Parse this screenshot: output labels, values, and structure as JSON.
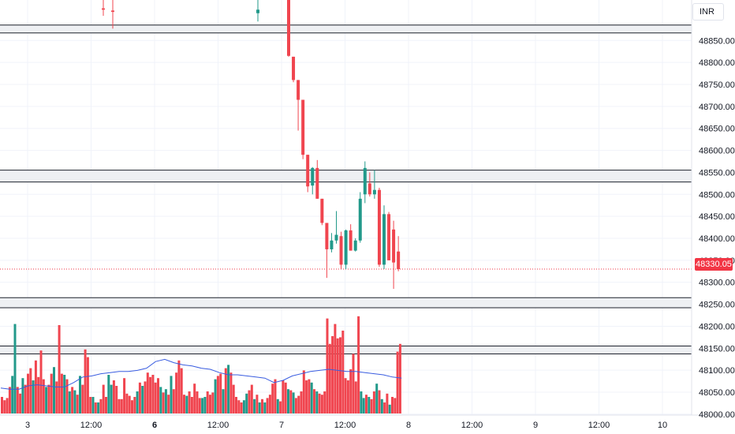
{
  "currency": "INR",
  "last_price_label": "48330.05",
  "colors": {
    "up": "#22998a",
    "down": "#f0454f",
    "ma": "#3a5de0",
    "zone_fill": "#eef0f3",
    "zone_border": "#1e222d",
    "grid": "#f0f3fa",
    "price_line": "#f23645"
  },
  "chart_data": {
    "type": "candlestick",
    "price_axis_ticks": [
      "48850.00",
      "48800.00",
      "48750.00",
      "48700.00",
      "48650.00",
      "48600.00",
      "48550.00",
      "48500.00",
      "48450.00",
      "48400.00",
      "48350.00",
      "48300.00",
      "48250.00",
      "48200.00",
      "48150.00",
      "48100.00",
      "48050.00",
      "48000.00"
    ],
    "time_axis_ticks": [
      {
        "label": "3",
        "bold": false
      },
      {
        "label": "12:00",
        "bold": false
      },
      {
        "label": "6",
        "bold": true
      },
      {
        "label": "12:00",
        "bold": false
      },
      {
        "label": "7",
        "bold": false
      },
      {
        "label": "12:00",
        "bold": false
      },
      {
        "label": "8",
        "bold": false
      },
      {
        "label": "12:00",
        "bold": false
      },
      {
        "label": "9",
        "bold": false
      },
      {
        "label": "12:00",
        "bold": false
      },
      {
        "label": "10",
        "bold": false
      }
    ],
    "ylim": [
      47998,
      48942
    ],
    "last_price": 48330.05,
    "horizontal_zones": [
      [
        48867,
        48885
      ],
      [
        48528,
        48555
      ],
      [
        48242,
        48265
      ],
      [
        48137,
        48155
      ]
    ],
    "candles": [
      {
        "o": 48923,
        "h": 48955,
        "l": 48906,
        "c": 48920
      },
      {
        "o": 48918,
        "h": 48945,
        "l": 48877,
        "c": 48915
      },
      {
        "o": 48912,
        "h": 48950,
        "l": 48893,
        "c": 48920
      },
      {
        "o": 48960,
        "h": 48962,
        "l": 48813,
        "c": 48815
      },
      {
        "o": 48813,
        "h": 48813,
        "l": 48755,
        "c": 48760
      },
      {
        "o": 48760,
        "h": 48760,
        "l": 48645,
        "c": 48715
      },
      {
        "o": 48715,
        "h": 48715,
        "l": 48580,
        "c": 48590
      },
      {
        "o": 48590,
        "h": 48590,
        "l": 48505,
        "c": 48518
      },
      {
        "o": 48520,
        "h": 48562,
        "l": 48500,
        "c": 48560
      },
      {
        "o": 48560,
        "h": 48578,
        "l": 48490,
        "c": 48490
      },
      {
        "o": 48490,
        "h": 48490,
        "l": 48430,
        "c": 48435
      },
      {
        "o": 48435,
        "h": 48435,
        "l": 48310,
        "c": 48375
      },
      {
        "o": 48375,
        "h": 48412,
        "l": 48368,
        "c": 48395
      },
      {
        "o": 48395,
        "h": 48462,
        "l": 48388,
        "c": 48408
      },
      {
        "o": 48405,
        "h": 48415,
        "l": 48330,
        "c": 48340
      },
      {
        "o": 48340,
        "h": 48420,
        "l": 48330,
        "c": 48418
      },
      {
        "o": 48418,
        "h": 48432,
        "l": 48372,
        "c": 48372
      },
      {
        "o": 48372,
        "h": 48400,
        "l": 48370,
        "c": 48395
      },
      {
        "o": 48395,
        "h": 48505,
        "l": 48390,
        "c": 48490
      },
      {
        "o": 48500,
        "h": 48575,
        "l": 48480,
        "c": 48560
      },
      {
        "o": 48525,
        "h": 48550,
        "l": 48495,
        "c": 48500
      },
      {
        "o": 48500,
        "h": 48555,
        "l": 48490,
        "c": 48510
      },
      {
        "o": 48510,
        "h": 48515,
        "l": 48335,
        "c": 48340
      },
      {
        "o": 48340,
        "h": 48475,
        "l": 48330,
        "c": 48455
      },
      {
        "o": 48455,
        "h": 48460,
        "l": 48350,
        "c": 48350
      },
      {
        "o": 48420,
        "h": 48440,
        "l": 48285,
        "c": 48345
      },
      {
        "o": 48370,
        "h": 48405,
        "l": 48325,
        "c": 48330
      }
    ],
    "volume": {
      "up_color": "#22998a",
      "down_color": "#f0454f",
      "bars": [
        {
          "v": 0.15,
          "up": false
        },
        {
          "v": 0.12,
          "up": false
        },
        {
          "v": 0.14,
          "up": false
        },
        {
          "v": 0.24,
          "up": false
        },
        {
          "v": 0.34,
          "up": true
        },
        {
          "v": 0.81,
          "up": true
        },
        {
          "v": 0.24,
          "up": false
        },
        {
          "v": 0.18,
          "up": false
        },
        {
          "v": 0.32,
          "up": true
        },
        {
          "v": 0.26,
          "up": false
        },
        {
          "v": 0.36,
          "up": false
        },
        {
          "v": 0.41,
          "up": false
        },
        {
          "v": 0.3,
          "up": true
        },
        {
          "v": 0.48,
          "up": false
        },
        {
          "v": 0.33,
          "up": false
        },
        {
          "v": 0.57,
          "up": false
        },
        {
          "v": 0.31,
          "up": false
        },
        {
          "v": 0.24,
          "up": true
        },
        {
          "v": 0.26,
          "up": false
        },
        {
          "v": 0.36,
          "up": false
        },
        {
          "v": 0.42,
          "up": true
        },
        {
          "v": 0.29,
          "up": false
        },
        {
          "v": 0.8,
          "up": false
        },
        {
          "v": 0.36,
          "up": false
        },
        {
          "v": 0.35,
          "up": true
        },
        {
          "v": 0.31,
          "up": false
        },
        {
          "v": 0.2,
          "up": true
        },
        {
          "v": 0.24,
          "up": false
        },
        {
          "v": 0.21,
          "up": true
        },
        {
          "v": 0.17,
          "up": false
        },
        {
          "v": 0.34,
          "up": true
        },
        {
          "v": 0.26,
          "up": false
        },
        {
          "v": 0.58,
          "up": false
        },
        {
          "v": 0.51,
          "up": false
        },
        {
          "v": 0.15,
          "up": false
        },
        {
          "v": 0.15,
          "up": true
        },
        {
          "v": 0.1,
          "up": false
        },
        {
          "v": 0.1,
          "up": true
        },
        {
          "v": 0.13,
          "up": false
        },
        {
          "v": 0.26,
          "up": false
        },
        {
          "v": 0.15,
          "up": false
        },
        {
          "v": 0.35,
          "up": true
        },
        {
          "v": 0.26,
          "up": true
        },
        {
          "v": 0.3,
          "up": false
        },
        {
          "v": 0.25,
          "up": false
        },
        {
          "v": 0.13,
          "up": false
        },
        {
          "v": 0.13,
          "up": false
        },
        {
          "v": 0.32,
          "up": false
        },
        {
          "v": 0.18,
          "up": false
        },
        {
          "v": 0.16,
          "up": false
        },
        {
          "v": 0.12,
          "up": false
        },
        {
          "v": 0.15,
          "up": false
        },
        {
          "v": 0.2,
          "up": true
        },
        {
          "v": 0.28,
          "up": false
        },
        {
          "v": 0.25,
          "up": true
        },
        {
          "v": 0.29,
          "up": false
        },
        {
          "v": 0.37,
          "up": false
        },
        {
          "v": 0.33,
          "up": false
        },
        {
          "v": 0.35,
          "up": false
        },
        {
          "v": 0.28,
          "up": false
        },
        {
          "v": 0.32,
          "up": false
        },
        {
          "v": 0.24,
          "up": true
        },
        {
          "v": 0.19,
          "up": false
        },
        {
          "v": 0.22,
          "up": true
        },
        {
          "v": 0.17,
          "up": false
        },
        {
          "v": 0.34,
          "up": true
        },
        {
          "v": 0.22,
          "up": false
        },
        {
          "v": 0.37,
          "up": false
        },
        {
          "v": 0.48,
          "up": false
        },
        {
          "v": 0.41,
          "up": false
        },
        {
          "v": 0.17,
          "up": false
        },
        {
          "v": 0.16,
          "up": true
        },
        {
          "v": 0.2,
          "up": false
        },
        {
          "v": 0.15,
          "up": false
        },
        {
          "v": 0.27,
          "up": false
        },
        {
          "v": 0.2,
          "up": false
        },
        {
          "v": 0.14,
          "up": false
        },
        {
          "v": 0.14,
          "up": true
        },
        {
          "v": 0.15,
          "up": true
        },
        {
          "v": 0.2,
          "up": false
        },
        {
          "v": 0.17,
          "up": false
        },
        {
          "v": 0.19,
          "up": false
        },
        {
          "v": 0.31,
          "up": true
        },
        {
          "v": 0.34,
          "up": false
        },
        {
          "v": 0.36,
          "up": false
        },
        {
          "v": 0.22,
          "up": true
        },
        {
          "v": 0.41,
          "up": false
        },
        {
          "v": 0.44,
          "up": true
        },
        {
          "v": 0.37,
          "up": false
        },
        {
          "v": 0.26,
          "up": false
        },
        {
          "v": 0.15,
          "up": false
        },
        {
          "v": 0.12,
          "up": false
        },
        {
          "v": 0.1,
          "up": false
        },
        {
          "v": 0.12,
          "up": true
        },
        {
          "v": 0.18,
          "up": true
        },
        {
          "v": 0.21,
          "up": false
        },
        {
          "v": 0.26,
          "up": false
        },
        {
          "v": 0.13,
          "up": true
        },
        {
          "v": 0.17,
          "up": false
        },
        {
          "v": 0.1,
          "up": true
        },
        {
          "v": 0.13,
          "up": false
        },
        {
          "v": 0.1,
          "up": true
        },
        {
          "v": 0.14,
          "up": false
        },
        {
          "v": 0.17,
          "up": false
        },
        {
          "v": 0.27,
          "up": false
        },
        {
          "v": 0.31,
          "up": false
        },
        {
          "v": 0.13,
          "up": true
        },
        {
          "v": 0.11,
          "up": false
        },
        {
          "v": 0.3,
          "up": false
        },
        {
          "v": 0.28,
          "up": false
        },
        {
          "v": 0.22,
          "up": true
        },
        {
          "v": 0.21,
          "up": false
        },
        {
          "v": 0.19,
          "up": true
        },
        {
          "v": 0.14,
          "up": false
        },
        {
          "v": 0.16,
          "up": false
        },
        {
          "v": 0.2,
          "up": false
        },
        {
          "v": 0.39,
          "up": false
        },
        {
          "v": 0.3,
          "up": false
        },
        {
          "v": 0.31,
          "up": false
        },
        {
          "v": 0.28,
          "up": true
        },
        {
          "v": 0.22,
          "up": false
        },
        {
          "v": 0.2,
          "up": true
        },
        {
          "v": 0.18,
          "up": false
        },
        {
          "v": 0.17,
          "up": false
        },
        {
          "v": 0.2,
          "up": false
        },
        {
          "v": 0.86,
          "up": false
        },
        {
          "v": 0.63,
          "up": false
        },
        {
          "v": 0.7,
          "up": false
        },
        {
          "v": 0.81,
          "up": false
        },
        {
          "v": 0.68,
          "up": false
        },
        {
          "v": 0.69,
          "up": false
        },
        {
          "v": 0.75,
          "up": false
        },
        {
          "v": 0.32,
          "up": false
        },
        {
          "v": 0.3,
          "up": false
        },
        {
          "v": 0.4,
          "up": false
        },
        {
          "v": 0.54,
          "up": false
        },
        {
          "v": 0.29,
          "up": false
        },
        {
          "v": 0.88,
          "up": false
        },
        {
          "v": 0.2,
          "up": true
        },
        {
          "v": 0.14,
          "up": true
        },
        {
          "v": 0.17,
          "up": false
        },
        {
          "v": 0.15,
          "up": true
        },
        {
          "v": 0.13,
          "up": false
        },
        {
          "v": 0.2,
          "up": false
        },
        {
          "v": 0.27,
          "up": true
        },
        {
          "v": 0.21,
          "up": false
        },
        {
          "v": 0.13,
          "up": true
        },
        {
          "v": 0.1,
          "up": false
        },
        {
          "v": 0.18,
          "up": false
        },
        {
          "v": 0.08,
          "up": true
        },
        {
          "v": 0.15,
          "up": false
        },
        {
          "v": 0.14,
          "up": false
        },
        {
          "v": 0.56,
          "up": false
        },
        {
          "v": 0.63,
          "up": false
        }
      ],
      "ma": [
        0.23,
        0.22,
        0.22,
        0.25,
        0.26,
        0.25,
        0.24,
        0.24,
        0.28,
        0.33,
        0.34,
        0.36,
        0.37,
        0.38,
        0.38,
        0.39,
        0.41,
        0.47,
        0.49,
        0.46,
        0.44,
        0.43,
        0.41,
        0.4,
        0.37,
        0.35,
        0.35,
        0.34,
        0.33,
        0.32,
        0.28,
        0.3,
        0.34,
        0.36,
        0.38,
        0.39,
        0.4,
        0.39,
        0.38,
        0.38,
        0.37,
        0.36,
        0.35,
        0.33,
        0.32
      ]
    }
  }
}
